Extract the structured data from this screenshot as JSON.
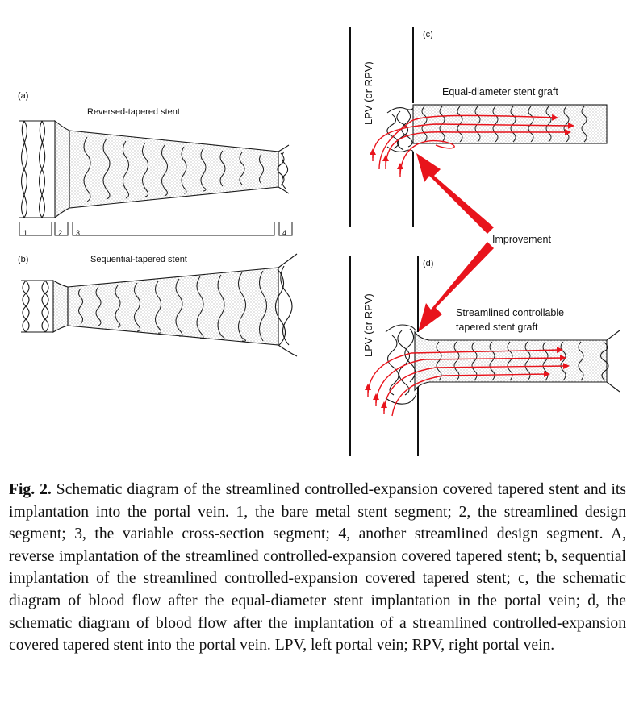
{
  "panels": {
    "a": {
      "tag": "(a)",
      "title": "Reversed-tapered stent"
    },
    "b": {
      "tag": "(b)",
      "title": "Sequential-tapered stent"
    },
    "c": {
      "tag": "(c)",
      "title": "Equal-diameter stent graft",
      "vessel": "LPV (or RPV)"
    },
    "d": {
      "tag": "(d)",
      "title_line1": "Streamlined controllable",
      "title_line2": "tapered stent graft",
      "vessel": "LPV (or RPV)"
    }
  },
  "segments": [
    "1",
    "2",
    "3",
    "4"
  ],
  "improvement_label": "Improvement",
  "colors": {
    "flow": "#e8141c",
    "line": "#1a1a1a",
    "fill_dot": "#9a9a9a"
  },
  "caption": {
    "label": "Fig. 2.",
    "text": "Schematic diagram of the streamlined controlled-expansion covered tapered stent and its implantation into the portal vein. 1, the bare metal stent segment; 2, the streamlined design segment; 3, the variable cross-section segment; 4, another streamlined design segment. A, reverse implantation of the streamlined controlled-expansion covered tapered stent; b, sequential implantation of the streamlined controlled-expansion covered tapered stent; c, the schematic diagram of blood flow after the equal-diameter stent implantation in the portal vein; d, the schematic diagram of blood flow after the implantation of a streamlined controlled-expansion covered tapered stent into the portal vein. LPV, left portal vein; RPV, right portal vein."
  }
}
